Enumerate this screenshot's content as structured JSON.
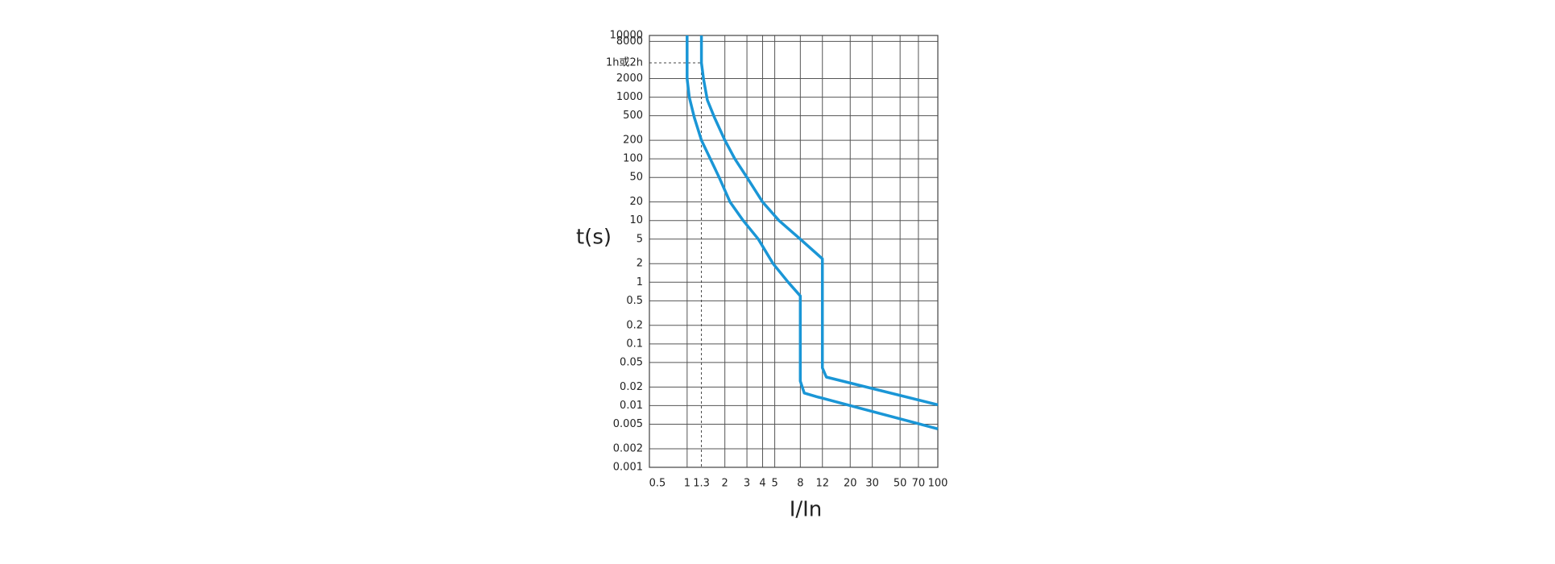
{
  "chart_data": {
    "type": "line",
    "x_label": "I/In",
    "y_label": "t(s)",
    "log_x": true,
    "log_y": true,
    "grid": true,
    "xlim": [
      0.5,
      100
    ],
    "ylim": [
      0.001,
      10000
    ],
    "xticks": [
      0.5,
      1,
      1.3,
      2,
      3,
      4,
      5,
      8,
      12,
      20,
      30,
      50,
      70,
      100
    ],
    "yticks": [
      10000,
      8000,
      {
        "value": 3600,
        "label": "1h或2h"
      },
      2000,
      1000,
      500,
      200,
      100,
      50,
      20,
      10,
      5,
      2,
      1,
      0.5,
      0.2,
      0.1,
      0.05,
      0.02,
      0.01,
      0.005,
      0.002,
      0.001
    ],
    "series": [
      {
        "color": "#1a96d6",
        "x": [
          1,
          1,
          1.04,
          1.14,
          1.3,
          1.53,
          1.8,
          2.2,
          2.8,
          3.7,
          4.85,
          6.4,
          8,
          8,
          8.6,
          10.7,
          100
        ],
        "values": [
          10000,
          2000,
          1000,
          470,
          200,
          100,
          50,
          20,
          10,
          5,
          2,
          1,
          0.6,
          0.025,
          0.016,
          0.014,
          0.0042
        ]
      },
      {
        "color": "#1a96d6",
        "x": [
          1.3,
          1.3,
          1.35,
          1.45,
          1.65,
          2,
          2.4,
          3,
          4,
          5.4,
          8,
          12,
          12,
          12.9,
          100
        ],
        "values": [
          10000,
          3600,
          2000,
          900,
          470,
          200,
          100,
          50,
          20,
          10,
          5,
          2.4,
          0.041,
          0.029,
          0.0103
        ]
      }
    ]
  }
}
